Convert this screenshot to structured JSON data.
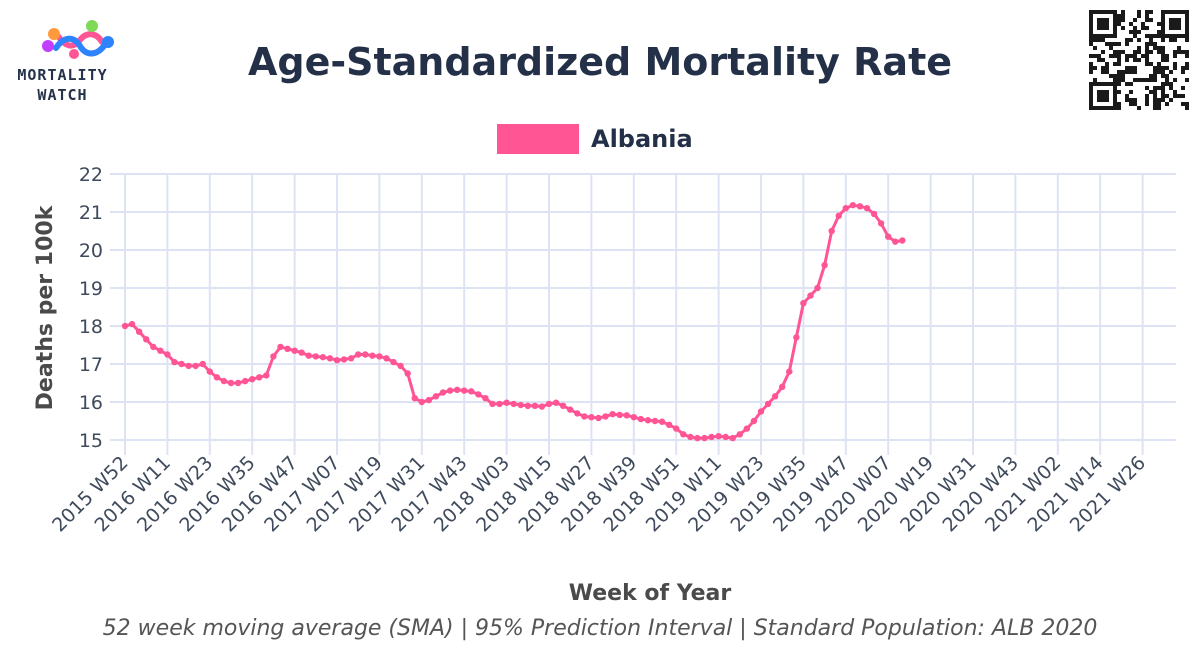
{
  "header": {
    "title": "Age-Standardized Mortality Rate",
    "logo_line1": "MORTALITY",
    "logo_line2": "WATCH"
  },
  "footnote": "52 week moving average (SMA) | 95% Prediction Interval | Standard Population: ALB 2020",
  "colors": {
    "series": "#ff5595",
    "grid": "#dde3f5",
    "text": "#233047"
  },
  "chart_data": {
    "type": "line",
    "title": "Age-Standardized Mortality Rate",
    "xlabel": "Week of Year",
    "ylabel": "Deaths per 100k",
    "ylim": [
      14.8,
      22.1
    ],
    "yticks": [
      15,
      16,
      17,
      18,
      19,
      20,
      21,
      22
    ],
    "grid": true,
    "legend_position": "top-center",
    "x_tick_labels": [
      "2015 W52",
      "2016 W11",
      "2016 W23",
      "2016 W35",
      "2016 W47",
      "2017 W07",
      "2017 W19",
      "2017 W31",
      "2017 W43",
      "2018 W03",
      "2018 W15",
      "2018 W27",
      "2018 W39",
      "2018 W51",
      "2019 W11",
      "2019 W23",
      "2019 W35",
      "2019 W47",
      "2020 W07",
      "2020 W19",
      "2020 W31",
      "2020 W43",
      "2021 W02",
      "2021 W14",
      "2021 W26"
    ],
    "series": [
      {
        "name": "Albania",
        "color": "#ff5595",
        "start_week": "2015 W52",
        "weeks_per_label": 12,
        "values": [
          18.0,
          18.05,
          17.85,
          17.65,
          17.45,
          17.35,
          17.25,
          17.05,
          17.0,
          16.95,
          16.95,
          17.0,
          16.8,
          16.65,
          16.55,
          16.5,
          16.5,
          16.55,
          16.6,
          16.65,
          16.7,
          17.2,
          17.45,
          17.4,
          17.35,
          17.3,
          17.22,
          17.2,
          17.18,
          17.15,
          17.1,
          17.12,
          17.15,
          17.25,
          17.25,
          17.22,
          17.2,
          17.15,
          17.05,
          16.95,
          16.75,
          16.1,
          16.0,
          16.05,
          16.15,
          16.25,
          16.3,
          16.32,
          16.3,
          16.28,
          16.2,
          16.1,
          15.95,
          15.95,
          15.98,
          15.95,
          15.92,
          15.9,
          15.9,
          15.88,
          15.95,
          15.98,
          15.9,
          15.8,
          15.7,
          15.62,
          15.6,
          15.58,
          15.62,
          15.68,
          15.66,
          15.65,
          15.6,
          15.55,
          15.52,
          15.5,
          15.48,
          15.4,
          15.3,
          15.15,
          15.08,
          15.05,
          15.05,
          15.08,
          15.1,
          15.08,
          15.05,
          15.15,
          15.3,
          15.5,
          15.75,
          15.95,
          16.15,
          16.4,
          16.8,
          17.7,
          18.6,
          18.8,
          19.0,
          19.6,
          20.5,
          20.9,
          21.1,
          21.18,
          21.15,
          21.1,
          20.95,
          20.7,
          20.35,
          20.22,
          20.25
        ]
      }
    ]
  }
}
